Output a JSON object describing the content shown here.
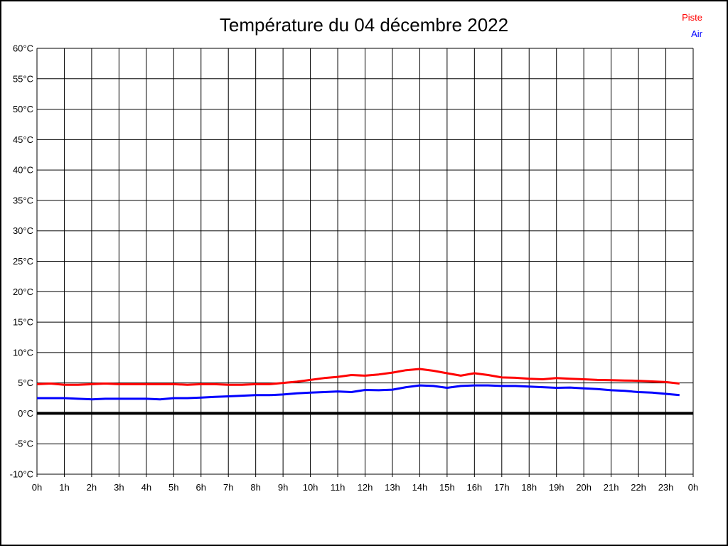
{
  "chart_data": {
    "type": "line",
    "title": "Température du 04 décembre 2022",
    "xlabel": "",
    "ylabel": "",
    "xlim": [
      0,
      24
    ],
    "ylim": [
      -10,
      60
    ],
    "grid": true,
    "zero_line": true,
    "legend_position": "top-right",
    "x_unit": "h",
    "y_unit": "°C",
    "x": [
      0,
      0.5,
      1,
      1.5,
      2,
      2.5,
      3,
      3.5,
      4,
      4.5,
      5,
      5.5,
      6,
      6.5,
      7,
      7.5,
      8,
      8.5,
      9,
      9.5,
      10,
      10.5,
      11,
      11.5,
      12,
      12.5,
      13,
      13.5,
      14,
      14.5,
      15,
      15.5,
      16,
      16.5,
      17,
      17.5,
      18,
      18.5,
      19,
      19.5,
      20,
      20.5,
      21,
      21.5,
      22,
      22.5,
      23,
      23.5
    ],
    "series": [
      {
        "name": "Piste",
        "color": "#ff0000",
        "values": [
          4.8,
          4.9,
          4.7,
          4.7,
          4.8,
          4.9,
          4.8,
          4.8,
          4.8,
          4.8,
          4.8,
          4.7,
          4.8,
          4.8,
          4.7,
          4.7,
          4.8,
          4.8,
          5.0,
          5.2,
          5.5,
          5.8,
          6.0,
          6.3,
          6.2,
          6.4,
          6.7,
          7.1,
          7.3,
          7.0,
          6.6,
          6.2,
          6.6,
          6.3,
          5.9,
          5.85,
          5.7,
          5.6,
          5.8,
          5.7,
          5.6,
          5.5,
          5.45,
          5.4,
          5.35,
          5.25,
          5.15,
          4.9
        ]
      },
      {
        "name": "Air",
        "color": "#0000ff",
        "values": [
          2.5,
          2.5,
          2.5,
          2.4,
          2.3,
          2.4,
          2.4,
          2.4,
          2.4,
          2.3,
          2.5,
          2.5,
          2.6,
          2.7,
          2.8,
          2.9,
          3.0,
          3.0,
          3.1,
          3.3,
          3.4,
          3.5,
          3.6,
          3.5,
          3.85,
          3.8,
          3.9,
          4.3,
          4.6,
          4.5,
          4.2,
          4.5,
          4.6,
          4.6,
          4.5,
          4.5,
          4.4,
          4.3,
          4.2,
          4.25,
          4.1,
          4.0,
          3.8,
          3.7,
          3.5,
          3.4,
          3.2,
          3.0
        ]
      }
    ],
    "ytick_values": [
      60,
      55,
      50,
      45,
      40,
      35,
      30,
      25,
      20,
      15,
      10,
      5,
      0,
      -5,
      -10
    ],
    "ytick_labels": [
      "60°C",
      "55°C",
      "50°C",
      "45°C",
      "40°C",
      "35°C",
      "30°C",
      "25°C",
      "20°C",
      "15°C",
      "10°C",
      "5°C",
      "0°C",
      "-5°C",
      "-10°C"
    ],
    "xtick_values": [
      0,
      1,
      2,
      3,
      4,
      5,
      6,
      7,
      8,
      9,
      10,
      11,
      12,
      13,
      14,
      15,
      16,
      17,
      18,
      19,
      20,
      21,
      22,
      23,
      24
    ],
    "xtick_labels": [
      "0h",
      "1h",
      "2h",
      "3h",
      "4h",
      "5h",
      "6h",
      "7h",
      "8h",
      "9h",
      "10h",
      "11h",
      "12h",
      "13h",
      "14h",
      "15h",
      "16h",
      "17h",
      "18h",
      "19h",
      "20h",
      "21h",
      "22h",
      "23h",
      "0h"
    ]
  },
  "legend": {
    "piste": "Piste",
    "air": "Air"
  },
  "colors": {
    "piste": "#ff0000",
    "air": "#0000ff",
    "grid": "#000000",
    "zero_line": "#000000",
    "text": "#000000",
    "background": "#ffffff",
    "border": "#000000"
  }
}
